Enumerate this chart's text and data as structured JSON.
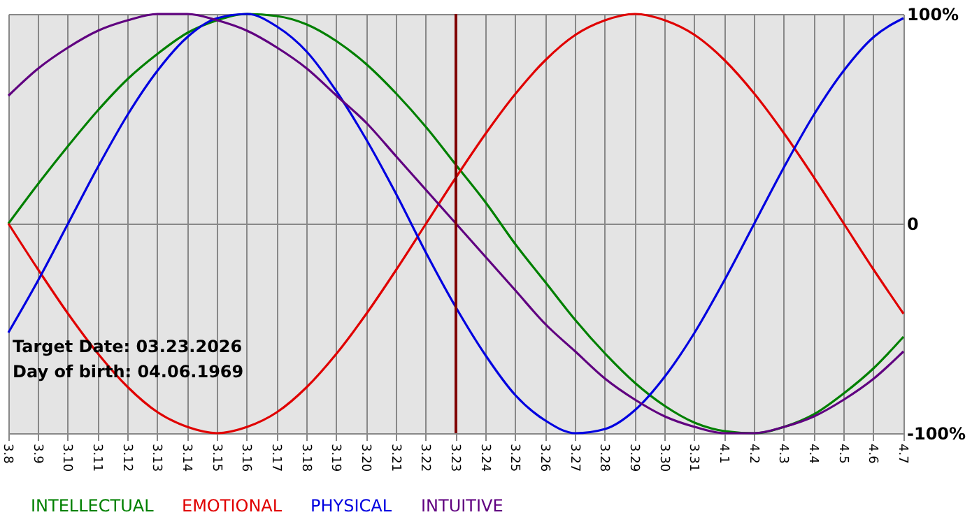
{
  "chart_data": {
    "type": "line",
    "categories": [
      "3.8",
      "3.9",
      "3.10",
      "3.11",
      "3.12",
      "3.13",
      "3.14",
      "3.15",
      "3.16",
      "3.17",
      "3.18",
      "3.19",
      "3.20",
      "3.21",
      "3.22",
      "3.23",
      "3.24",
      "3.25",
      "3.26",
      "3.27",
      "3.28",
      "3.29",
      "3.30",
      "3.31",
      "4.1",
      "4.2",
      "4.3",
      "4.4",
      "4.5",
      "4.6",
      "4.7"
    ],
    "series": [
      {
        "name": "INTELLECTUAL",
        "color": "#008000",
        "values": [
          0,
          19,
          37,
          54,
          69,
          81,
          91,
          97,
          100,
          99,
          95,
          87,
          76,
          62,
          46,
          28,
          10,
          -10,
          -28,
          -46,
          -62,
          -76,
          -87,
          -95,
          -99,
          -100,
          -97,
          -91,
          -81,
          -69,
          -54
        ]
      },
      {
        "name": "EMOTIONAL",
        "color": "#e00000",
        "values": [
          0,
          -22,
          -43,
          -62,
          -78,
          -90,
          -97,
          -100,
          -97,
          -90,
          -78,
          -62,
          -43,
          -22,
          0,
          22,
          43,
          62,
          78,
          90,
          97,
          100,
          97,
          90,
          78,
          62,
          43,
          22,
          0,
          -22,
          -43
        ]
      },
      {
        "name": "PHYSICAL",
        "color": "#0000e0",
        "values": [
          -52,
          -27,
          0,
          27,
          52,
          73,
          89,
          98,
          100,
          94,
          82,
          63,
          40,
          14,
          -14,
          -40,
          -63,
          -82,
          -94,
          -100,
          -98,
          -89,
          -73,
          -52,
          -27,
          0,
          27,
          52,
          73,
          89,
          98
        ]
      },
      {
        "name": "INTUITIVE",
        "color": "#600080",
        "values": [
          61,
          74,
          84,
          92,
          97,
          100,
          100,
          97,
          92,
          84,
          74,
          61,
          48,
          32,
          16,
          0,
          -16,
          -32,
          -48,
          -61,
          -74,
          -84,
          -92,
          -97,
          -100,
          -100,
          -97,
          -92,
          -84,
          -74,
          -61
        ]
      }
    ],
    "ylim": [
      -100,
      100
    ],
    "yticks": [
      {
        "value": 100,
        "label": "100%"
      },
      0,
      {
        "value": -100,
        "label": "-100%"
      }
    ],
    "grid": true,
    "legend": "bottom left",
    "marker": "none",
    "ref_lines": [
      {
        "axis": "x",
        "value": "3.23",
        "color": "#800000"
      }
    ],
    "annotations": [
      "Target Date: 03.23.2026",
      "Day of birth: 04.06.1969"
    ]
  }
}
